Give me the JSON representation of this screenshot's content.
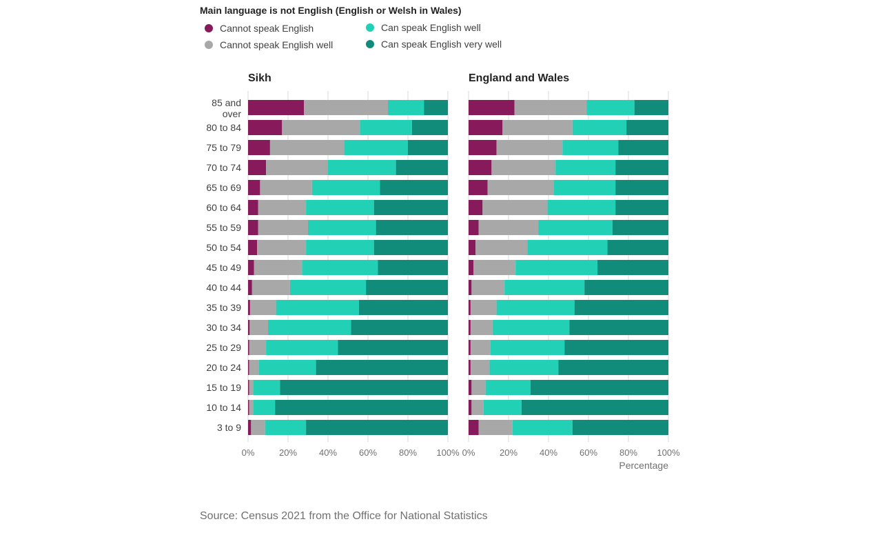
{
  "source_text": "Source: Census 2021 from the Office for National Statistics",
  "chart_data": {
    "type": "bar",
    "orientation": "horizontal",
    "stacked": "percent",
    "title": "Main language is not English (English or Welsh in Wales)",
    "xlabel": "Percentage",
    "xlim": [
      0,
      100
    ],
    "x_ticks": [
      "0%",
      "20%",
      "40%",
      "60%",
      "80%",
      "100%"
    ],
    "grid": true,
    "legend_position": "top",
    "categories": [
      "85 and over",
      "80 to 84",
      "75 to 79",
      "70 to 74",
      "65 to 69",
      "60 to 64",
      "55 to 59",
      "50 to 54",
      "45 to 49",
      "40 to 44",
      "35 to 39",
      "30 to 34",
      "25 to 29",
      "20 to 24",
      "15 to 19",
      "10 to 14",
      "3 to 9"
    ],
    "legend": [
      {
        "name": "Cannot speak English",
        "color": "#871a5b"
      },
      {
        "name": "Cannot speak English well",
        "color": "#a8a8a8"
      },
      {
        "name": "Can speak English well",
        "color": "#22d0b6"
      },
      {
        "name": "Can speak English very well",
        "color": "#118c7b"
      }
    ],
    "panels": [
      {
        "title": "Sikh",
        "series": [
          {
            "name": "Cannot speak English",
            "values": [
              28,
              17,
              11,
              9,
              6,
              5,
              5,
              4.5,
              3,
              2,
              1,
              0.8,
              0.6,
              0.5,
              0.5,
              0.5,
              1.5
            ]
          },
          {
            "name": "Cannot speak English well",
            "values": [
              42,
              39,
              37,
              31,
              26,
              24,
              25,
              24.5,
              24,
              19,
              13,
              9.2,
              8.4,
              5,
              2,
              2,
              7
            ]
          },
          {
            "name": "Can speak English well",
            "values": [
              18,
              26,
              32,
              34,
              34,
              34,
              34,
              34,
              38,
              38,
              41.5,
              41.5,
              36,
              28.5,
              13.5,
              11,
              20.5
            ]
          },
          {
            "name": "Can speak English very well",
            "values": [
              12,
              18,
              20,
              26,
              34,
              37,
              36,
              37,
              35,
              41,
              44.5,
              48.5,
              55,
              66,
              84,
              86.5,
              71
            ]
          }
        ]
      },
      {
        "title": "England and Wales",
        "series": [
          {
            "name": "Cannot speak English",
            "values": [
              23,
              17,
              14,
              11.5,
              9.5,
              7,
              5,
              3.5,
              2.5,
              1.5,
              1,
              1,
              1,
              1,
              1.5,
              1.5,
              5
            ]
          },
          {
            "name": "Cannot speak English well",
            "values": [
              36,
              35,
              33,
              32,
              33,
              32.5,
              30,
              26,
              21,
              16.5,
              13,
              11,
              10,
              9.5,
              7,
              6,
              17
            ]
          },
          {
            "name": "Can speak English well",
            "values": [
              24,
              27,
              28,
              30,
              31,
              34,
              37,
              40,
              41,
              40,
              39,
              38.5,
              37,
              34.5,
              22.5,
              19,
              30
            ]
          },
          {
            "name": "Can speak English very well",
            "values": [
              17,
              21,
              25,
              26.5,
              26.5,
              26.5,
              28,
              30.5,
              35.5,
              42,
              47,
              49.5,
              52,
              55,
              69,
              73.5,
              48
            ]
          }
        ]
      }
    ]
  }
}
